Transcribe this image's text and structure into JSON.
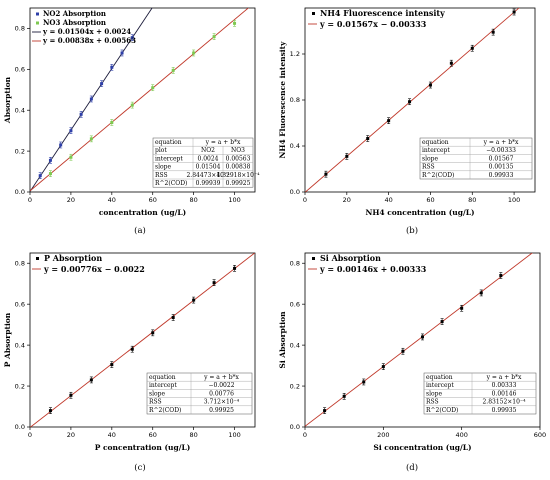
{
  "colors": {
    "fit_line": "#c0392b",
    "no2": "#2e3fa8",
    "no3": "#7ec850",
    "black_points": "#000000"
  },
  "chart_data": [
    {
      "type": "scatter",
      "panel_label": "(a)",
      "xlabel": "concentration (ug/L)",
      "ylabel": "Absorption",
      "xlim": [
        0,
        110
      ],
      "ylim": [
        0,
        0.9
      ],
      "xticks": [
        0,
        20,
        40,
        60,
        80,
        100
      ],
      "yticks": [
        0.0,
        0.2,
        0.4,
        0.6,
        0.8
      ],
      "ytick_labels": [
        "0.0",
        "0.2",
        "0.4",
        "0.6",
        "0.8"
      ],
      "legend": {
        "items": [
          "NO2 Absorption",
          "NO3 Absorption",
          "y = 0.01504x + 0.0024",
          "y = 0.00838x + 0.00563"
        ],
        "position": "top-left"
      },
      "series": [
        {
          "name": "NO2 Absorption",
          "color": "#2e3fa8",
          "slope": 0.01504,
          "intercept": 0.0024,
          "x": [
            5,
            10,
            15,
            20,
            25,
            30,
            35,
            40,
            45,
            50
          ],
          "y": [
            0.08,
            0.155,
            0.23,
            0.3,
            0.38,
            0.455,
            0.53,
            0.61,
            0.68,
            0.755
          ]
        },
        {
          "name": "NO3 Absorption",
          "color": "#7ec850",
          "slope": 0.00838,
          "intercept": 0.00563,
          "x": [
            10,
            20,
            30,
            40,
            50,
            60,
            70,
            80,
            90,
            100
          ],
          "y": [
            0.09,
            0.17,
            0.26,
            0.34,
            0.425,
            0.51,
            0.595,
            0.68,
            0.76,
            0.825
          ]
        }
      ],
      "table": {
        "rows": [
          [
            "equation",
            "y = a + b*x",
            ""
          ],
          [
            "plot",
            "NO2",
            "NO3"
          ],
          [
            "intercept",
            "0.0024",
            "0.00563"
          ],
          [
            "slope",
            "0.01504",
            "0.00838"
          ],
          [
            "RSS",
            "2.84473×10⁻⁴",
            "4.32918×10⁻⁴"
          ],
          [
            "R^2(COD)",
            "0.99939",
            "0.99925"
          ]
        ]
      }
    },
    {
      "type": "scatter",
      "panel_label": "(b)",
      "xlabel": "NH4 concentration (ug/L)",
      "ylabel": "NH4 Fluorescence intensity",
      "xlim": [
        0,
        110
      ],
      "ylim": [
        0,
        1.6
      ],
      "xticks": [
        0,
        20,
        40,
        60,
        80,
        100
      ],
      "yticks": [
        0.0,
        0.4,
        0.8,
        1.2
      ],
      "ytick_labels": [
        "0.0",
        "0.4",
        "0.8",
        "1.2"
      ],
      "legend": {
        "items": [
          "NH4 Fluorescence intensity",
          "y = 0.01567x − 0.00333"
        ],
        "position": "top-left"
      },
      "series": [
        {
          "name": "NH4 Fluorescence intensity",
          "color": "#000000",
          "slope": 0.01567,
          "intercept": -0.00333,
          "x": [
            10,
            20,
            30,
            40,
            50,
            60,
            70,
            80,
            90,
            100
          ],
          "y": [
            0.155,
            0.31,
            0.465,
            0.62,
            0.785,
            0.93,
            1.12,
            1.25,
            1.39,
            1.565
          ]
        }
      ],
      "table": {
        "rows": [
          [
            "equation",
            "y = a + b*x"
          ],
          [
            "intercept",
            "−0.00333"
          ],
          [
            "slope",
            "0.01567"
          ],
          [
            "RSS",
            "0.00135"
          ],
          [
            "R^2(COD)",
            "0.99933"
          ]
        ]
      }
    },
    {
      "type": "scatter",
      "panel_label": "(c)",
      "xlabel": "P concentration (ug/L)",
      "ylabel": "P Absorption",
      "xlim": [
        0,
        110
      ],
      "ylim": [
        0,
        0.85
      ],
      "xticks": [
        0,
        20,
        40,
        60,
        80,
        100
      ],
      "yticks": [
        0.0,
        0.2,
        0.4,
        0.6,
        0.8
      ],
      "ytick_labels": [
        "0.0",
        "0.2",
        "0.4",
        "0.6",
        "0.8"
      ],
      "legend": {
        "items": [
          "P Absorption",
          "y = 0.00776x − 0.0022"
        ],
        "position": "top-left"
      },
      "series": [
        {
          "name": "P Absorption",
          "color": "#000000",
          "slope": 0.00776,
          "intercept": -0.0022,
          "x": [
            10,
            20,
            30,
            40,
            50,
            60,
            70,
            80,
            90,
            100
          ],
          "y": [
            0.08,
            0.155,
            0.23,
            0.305,
            0.38,
            0.46,
            0.535,
            0.62,
            0.705,
            0.775
          ]
        }
      ],
      "table": {
        "rows": [
          [
            "equation",
            "y = a + b*x"
          ],
          [
            "intercept",
            "−0.0022"
          ],
          [
            "slope",
            "0.00776"
          ],
          [
            "RSS",
            "3.712×10⁻⁴"
          ],
          [
            "R^2(COD)",
            "0.99925"
          ]
        ]
      }
    },
    {
      "type": "scatter",
      "panel_label": "(d)",
      "xlabel": "Si concentration (ug/L)",
      "ylabel": "Si Absorption",
      "xlim": [
        0,
        600
      ],
      "ylim": [
        0,
        0.85
      ],
      "xticks": [
        0,
        200,
        400,
        600
      ],
      "yticks": [
        0.0,
        0.2,
        0.4,
        0.6,
        0.8
      ],
      "ytick_labels": [
        "0.0",
        "0.2",
        "0.4",
        "0.6",
        "0.8"
      ],
      "legend": {
        "items": [
          "Si Absorption",
          "y = 0.00146x + 0.00333"
        ],
        "position": "top-left"
      },
      "series": [
        {
          "name": "Si Absorption",
          "color": "#000000",
          "slope": 0.00146,
          "intercept": 0.00333,
          "x": [
            50,
            100,
            150,
            200,
            250,
            300,
            350,
            400,
            450,
            500
          ],
          "y": [
            0.08,
            0.15,
            0.22,
            0.295,
            0.37,
            0.44,
            0.515,
            0.58,
            0.655,
            0.74
          ]
        }
      ],
      "table": {
        "rows": [
          [
            "equation",
            "y = a + b*x"
          ],
          [
            "intercept",
            "0.00333"
          ],
          [
            "slope",
            "0.00146"
          ],
          [
            "RSS",
            "2.83152×10⁻⁴"
          ],
          [
            "R^2(COD)",
            "0.99935"
          ]
        ]
      }
    }
  ]
}
